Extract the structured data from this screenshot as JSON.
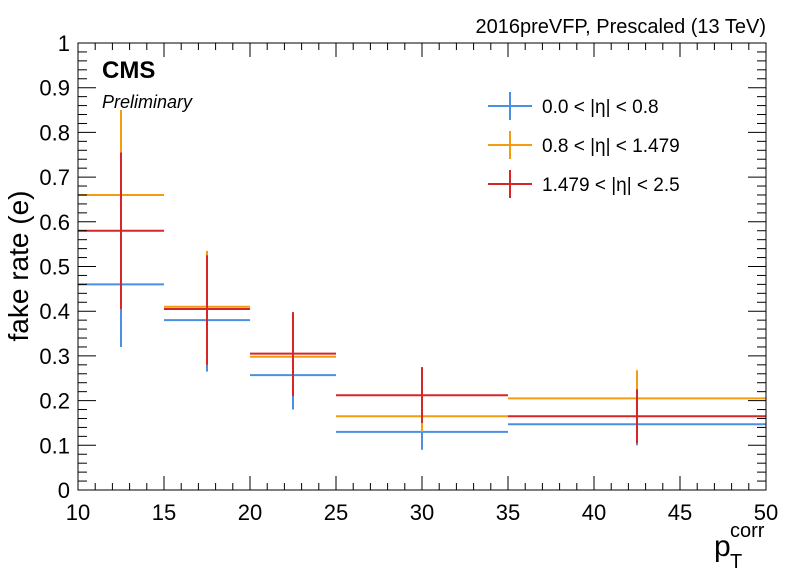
{
  "header": {
    "top_right": "2016preVFP, Prescaled (13 TeV)",
    "experiment": "CMS",
    "status": "Preliminary"
  },
  "chart_data": {
    "type": "scatter",
    "ylabel": "fake rate (e)",
    "xlabel_main": "p",
    "xlabel_sub": "T",
    "xlabel_sup": "corr",
    "xlim": [
      10,
      50
    ],
    "ylim": [
      0,
      1
    ],
    "x_ticks": [
      "10",
      "15",
      "20",
      "25",
      "30",
      "35",
      "40",
      "45",
      "50"
    ],
    "y_ticks": [
      "0",
      "0.1",
      "0.2",
      "0.3",
      "0.4",
      "0.5",
      "0.6",
      "0.7",
      "0.8",
      "0.9",
      "1"
    ],
    "grid": false,
    "legend_position": "top-right",
    "bins": [
      [
        10,
        15
      ],
      [
        15,
        20
      ],
      [
        20,
        25
      ],
      [
        25,
        35
      ],
      [
        35,
        50
      ]
    ],
    "series": [
      {
        "name": "0.0 < |η| < 0.8",
        "color": "#4a90e2",
        "values": [
          0.46,
          0.38,
          0.257,
          0.13,
          0.147
        ],
        "err_low": [
          0.32,
          0.265,
          0.18,
          0.09,
          0.1
        ],
        "err_high": [
          0.6,
          0.5,
          0.335,
          0.17,
          0.19
        ]
      },
      {
        "name": "0.8 < |η| < 1.479",
        "color": "#f39c12",
        "values": [
          0.66,
          0.41,
          0.298,
          0.165,
          0.205
        ],
        "err_low": [
          0.47,
          0.29,
          0.22,
          0.13,
          0.14
        ],
        "err_high": [
          0.85,
          0.535,
          0.375,
          0.2,
          0.268
        ]
      },
      {
        "name": "1.479 < |η| < 2.5",
        "color": "#d62728",
        "values": [
          0.58,
          0.405,
          0.305,
          0.212,
          0.165
        ],
        "err_low": [
          0.405,
          0.28,
          0.21,
          0.15,
          0.105
        ],
        "err_high": [
          0.755,
          0.525,
          0.398,
          0.275,
          0.225
        ]
      }
    ]
  }
}
